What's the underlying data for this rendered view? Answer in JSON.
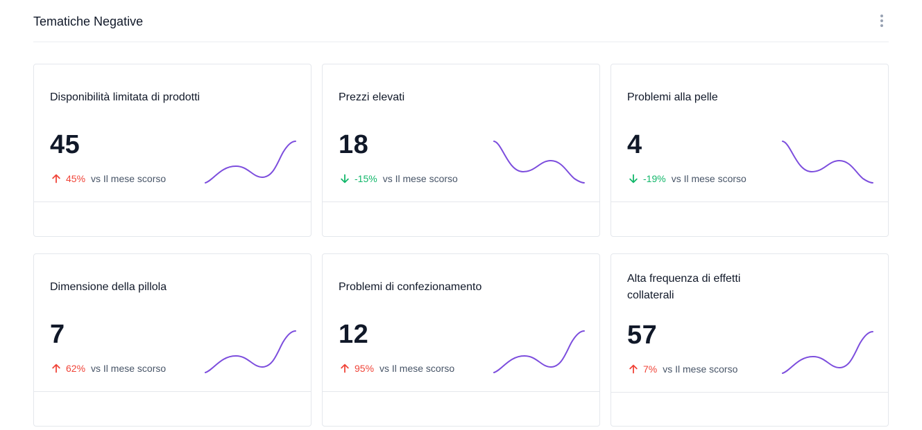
{
  "header": {
    "title": "Tematiche Negative",
    "menu_icon": "kebab-vertical-icon"
  },
  "colors": {
    "accent_line": "#7c4ddd",
    "up": "#f04438",
    "down": "#12b76a",
    "muted_text": "#475467"
  },
  "cards": [
    {
      "title": "Disponibilità limitata di prodotti",
      "value": "45",
      "trend_direction": "up",
      "trend_icon": "arrow-up-icon",
      "trend_pct": "45%",
      "comparison": "vs Il mese scorso",
      "sparkline": "rising"
    },
    {
      "title": "Prezzi elevati",
      "value": "18",
      "trend_direction": "down",
      "trend_icon": "arrow-down-icon",
      "trend_pct": "-15%",
      "comparison": "vs Il mese scorso",
      "sparkline": "falling"
    },
    {
      "title": "Problemi alla pelle",
      "value": "4",
      "trend_direction": "down",
      "trend_icon": "arrow-down-icon",
      "trend_pct": "-19%",
      "comparison": "vs Il mese scorso",
      "sparkline": "falling"
    },
    {
      "title": "Dimensione della pillola",
      "value": "7",
      "trend_direction": "up",
      "trend_icon": "arrow-up-icon",
      "trend_pct": "62%",
      "comparison": "vs Il mese scorso",
      "sparkline": "rising"
    },
    {
      "title": "Problemi di confezionamento",
      "value": "12",
      "trend_direction": "up",
      "trend_icon": "arrow-up-icon",
      "trend_pct": "95%",
      "comparison": "vs Il mese scorso",
      "sparkline": "rising"
    },
    {
      "title": "Alta frequenza di effetti collaterali",
      "value": "57",
      "trend_direction": "up",
      "trend_icon": "arrow-up-icon",
      "trend_pct": "7%",
      "comparison": "vs Il mese scorso",
      "sparkline": "rising"
    }
  ]
}
